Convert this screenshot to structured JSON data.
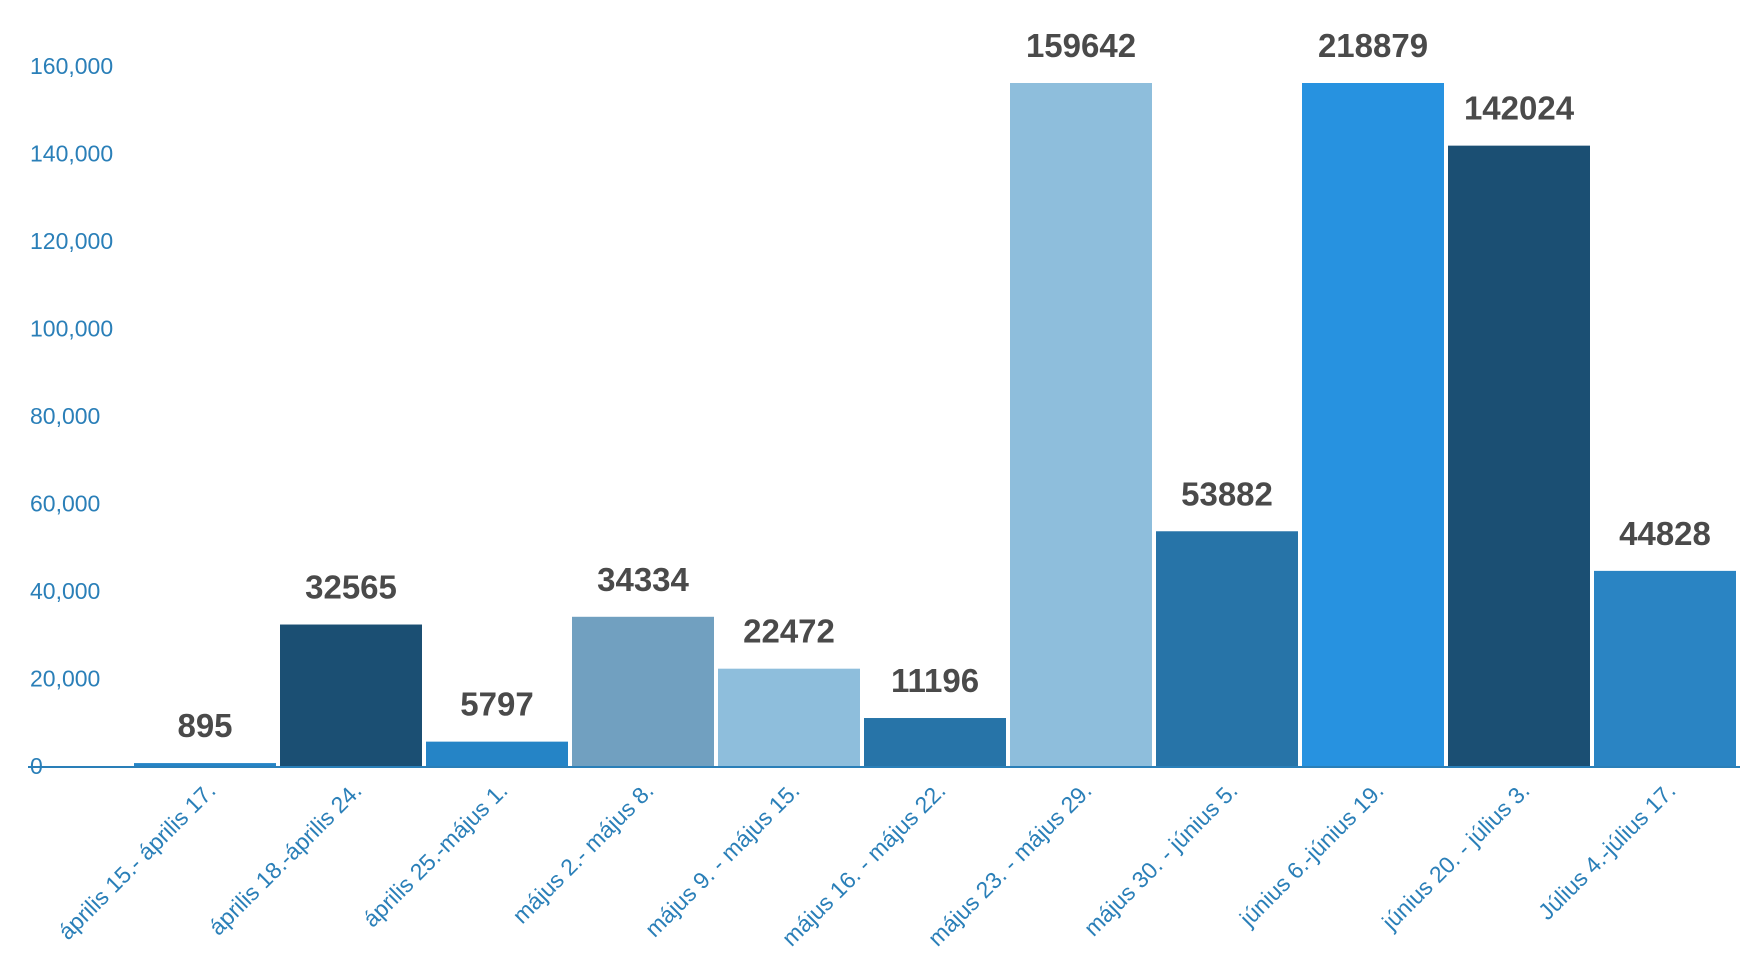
{
  "chart_data": {
    "type": "bar",
    "title": "",
    "xlabel": "",
    "ylabel": "",
    "ylim": [
      0,
      160000
    ],
    "yticks": [
      0,
      20000,
      40000,
      60000,
      80000,
      100000,
      120000,
      140000,
      160000
    ],
    "ytick_labels": [
      "0",
      "20,000",
      "40,000",
      "60,000",
      "80,000",
      "100,000",
      "120,000",
      "140,000",
      "160,000"
    ],
    "grid": false,
    "legend": "none",
    "categories": [
      "április 15.- április 17.",
      "április 18.-április 24.",
      "április 25.-május 1.",
      "május 2.- május 8.",
      "május 9. - május 15.",
      "május 16. - május 22.",
      "május 23. - május 29.",
      "május 30. - június 5.",
      "június 6.-június 19.",
      "június 20. - július 3.",
      "Július 4.-július 17."
    ],
    "values": [
      895,
      32565,
      5797,
      34334,
      22472,
      11196,
      159642,
      53882,
      218879,
      142024,
      44828
    ],
    "data_labels": [
      "895",
      "32565",
      "5797",
      "34334",
      "22472",
      "11196",
      "159642",
      "53882",
      "218879",
      "142024",
      "44828"
    ],
    "bar_colors": [
      "#2584c6",
      "#1b4f73",
      "#2584c6",
      "#71a0c0",
      "#8ebedc",
      "#2774a8",
      "#8ebedc",
      "#2774a8",
      "#2792e0",
      "#1b4f73",
      "#2a84c3"
    ],
    "colors": {
      "tick_text": "#2a7fb8",
      "label_text": "#4a4a4a",
      "axis_line": "#2a7fb8"
    }
  }
}
